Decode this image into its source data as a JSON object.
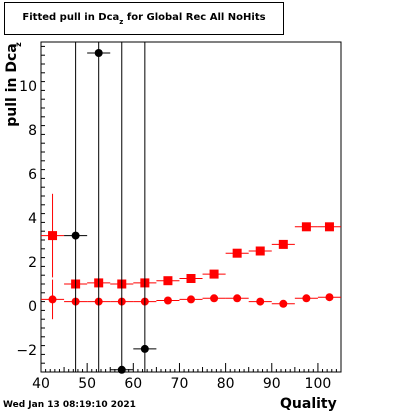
{
  "title": {
    "main": "Fitted pull in Dca",
    "sub": "z",
    "rest": " for Global Rec All NoHits"
  },
  "ylabel": "pull in Dca",
  "ylabel_sub": "z",
  "xlabel": "Quality",
  "footer": "Wed Jan 13 08:19:10 2021",
  "colors": {
    "red": "#ff0000",
    "black": "#000000",
    "axis": "#000000"
  },
  "chart_data": {
    "type": "scatter",
    "xlim": [
      40,
      105
    ],
    "ylim": [
      -3,
      12
    ],
    "xticks": [
      40,
      50,
      60,
      70,
      80,
      90,
      100
    ],
    "yticks": [
      -2,
      0,
      2,
      4,
      6,
      8,
      10
    ],
    "grid": false,
    "series": [
      {
        "marker": "square",
        "color": "#ff0000",
        "points": [
          {
            "x": 42.5,
            "y": 3.2,
            "ey": 1.9
          },
          {
            "x": 47.5,
            "y": 1.0,
            "ey": 0.15
          },
          {
            "x": 52.5,
            "y": 1.05,
            "ey": 0.1
          },
          {
            "x": 57.5,
            "y": 1.0,
            "ey": 0.1
          },
          {
            "x": 62.5,
            "y": 1.05,
            "ey": 0.1
          },
          {
            "x": 67.5,
            "y": 1.15,
            "ey": 0.1
          },
          {
            "x": 72.5,
            "y": 1.25,
            "ey": 0.1
          },
          {
            "x": 77.5,
            "y": 1.45,
            "ey": 0.1
          },
          {
            "x": 82.5,
            "y": 2.4,
            "ey": 0.1
          },
          {
            "x": 87.5,
            "y": 2.5,
            "ey": 0.1
          },
          {
            "x": 92.5,
            "y": 2.8,
            "ey": 0.1
          },
          {
            "x": 97.5,
            "y": 3.6,
            "ey": 0.1
          },
          {
            "x": 102.5,
            "y": 3.6,
            "ey": 0.1
          }
        ]
      },
      {
        "marker": "circle",
        "color": "#ff0000",
        "points": [
          {
            "x": 42.5,
            "y": 0.3,
            "ey": 0.9
          },
          {
            "x": 47.5,
            "y": 0.2,
            "ey": 0.05
          },
          {
            "x": 52.5,
            "y": 0.2,
            "ey": 0.05
          },
          {
            "x": 57.5,
            "y": 0.2,
            "ey": 0.05
          },
          {
            "x": 62.5,
            "y": 0.2,
            "ey": 0.05
          },
          {
            "x": 67.5,
            "y": 0.25,
            "ey": 0.05
          },
          {
            "x": 72.5,
            "y": 0.3,
            "ey": 0.05
          },
          {
            "x": 77.5,
            "y": 0.35,
            "ey": 0.05
          },
          {
            "x": 82.5,
            "y": 0.35,
            "ey": 0.05
          },
          {
            "x": 87.5,
            "y": 0.2,
            "ey": 0.05
          },
          {
            "x": 92.5,
            "y": 0.1,
            "ey": 0.05
          },
          {
            "x": 97.5,
            "y": 0.35,
            "ey": 0.05
          },
          {
            "x": 102.5,
            "y": 0.4,
            "ey": 0.05
          }
        ]
      },
      {
        "marker": "circle",
        "color": "#000000",
        "points": [
          {
            "x": 47.5,
            "y": 3.2,
            "ey": 20
          },
          {
            "x": 52.5,
            "y": 11.5,
            "ey": 20
          },
          {
            "x": 57.5,
            "y": -2.9,
            "ey": 20
          },
          {
            "x": 62.5,
            "y": -1.95,
            "ey": 20
          }
        ]
      }
    ]
  }
}
